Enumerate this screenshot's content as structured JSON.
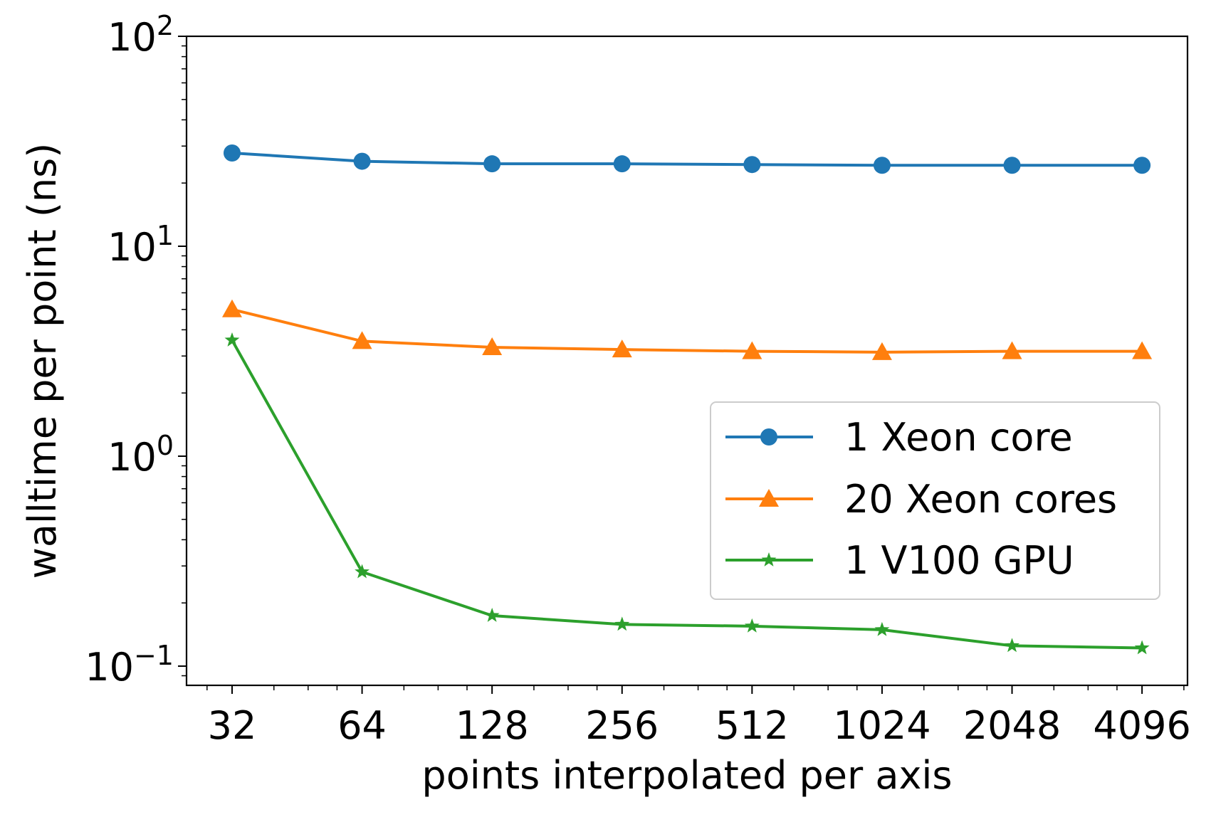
{
  "chart_data": {
    "type": "line",
    "title": "",
    "xlabel": "points interpolated per axis",
    "ylabel": "walltime per point (ns)",
    "xscale": "log2",
    "yscale": "log10",
    "x": [
      32,
      64,
      128,
      256,
      512,
      1024,
      2048,
      4096
    ],
    "xtick_labels": [
      "32",
      "64",
      "128",
      "256",
      "512",
      "1024",
      "2048",
      "4096"
    ],
    "xlim": [
      25.1,
      5220
    ],
    "ylim": [
      0.081,
      100
    ],
    "ytick_labels": [
      {
        "value": 0.1,
        "base": "10",
        "exp": "−1"
      },
      {
        "value": 1,
        "base": "10",
        "exp": "0"
      },
      {
        "value": 10,
        "base": "10",
        "exp": "1"
      },
      {
        "value": 100,
        "base": "10",
        "exp": "2"
      }
    ],
    "grid": false,
    "legend_placement": "center-right",
    "series": [
      {
        "name": "1 Xeon core",
        "color": "#1f77b4",
        "marker": "circle",
        "values": [
          27.8,
          25.4,
          24.7,
          24.7,
          24.5,
          24.3,
          24.3,
          24.3
        ]
      },
      {
        "name": "20 Xeon cores",
        "color": "#ff7f0e",
        "marker": "triangle",
        "values": [
          5.0,
          3.53,
          3.3,
          3.22,
          3.16,
          3.13,
          3.16,
          3.16
        ]
      },
      {
        "name": "1 V100 GPU",
        "color": "#2ca02c",
        "marker": "star",
        "values": [
          3.57,
          0.281,
          0.174,
          0.158,
          0.155,
          0.149,
          0.125,
          0.122
        ]
      }
    ]
  }
}
